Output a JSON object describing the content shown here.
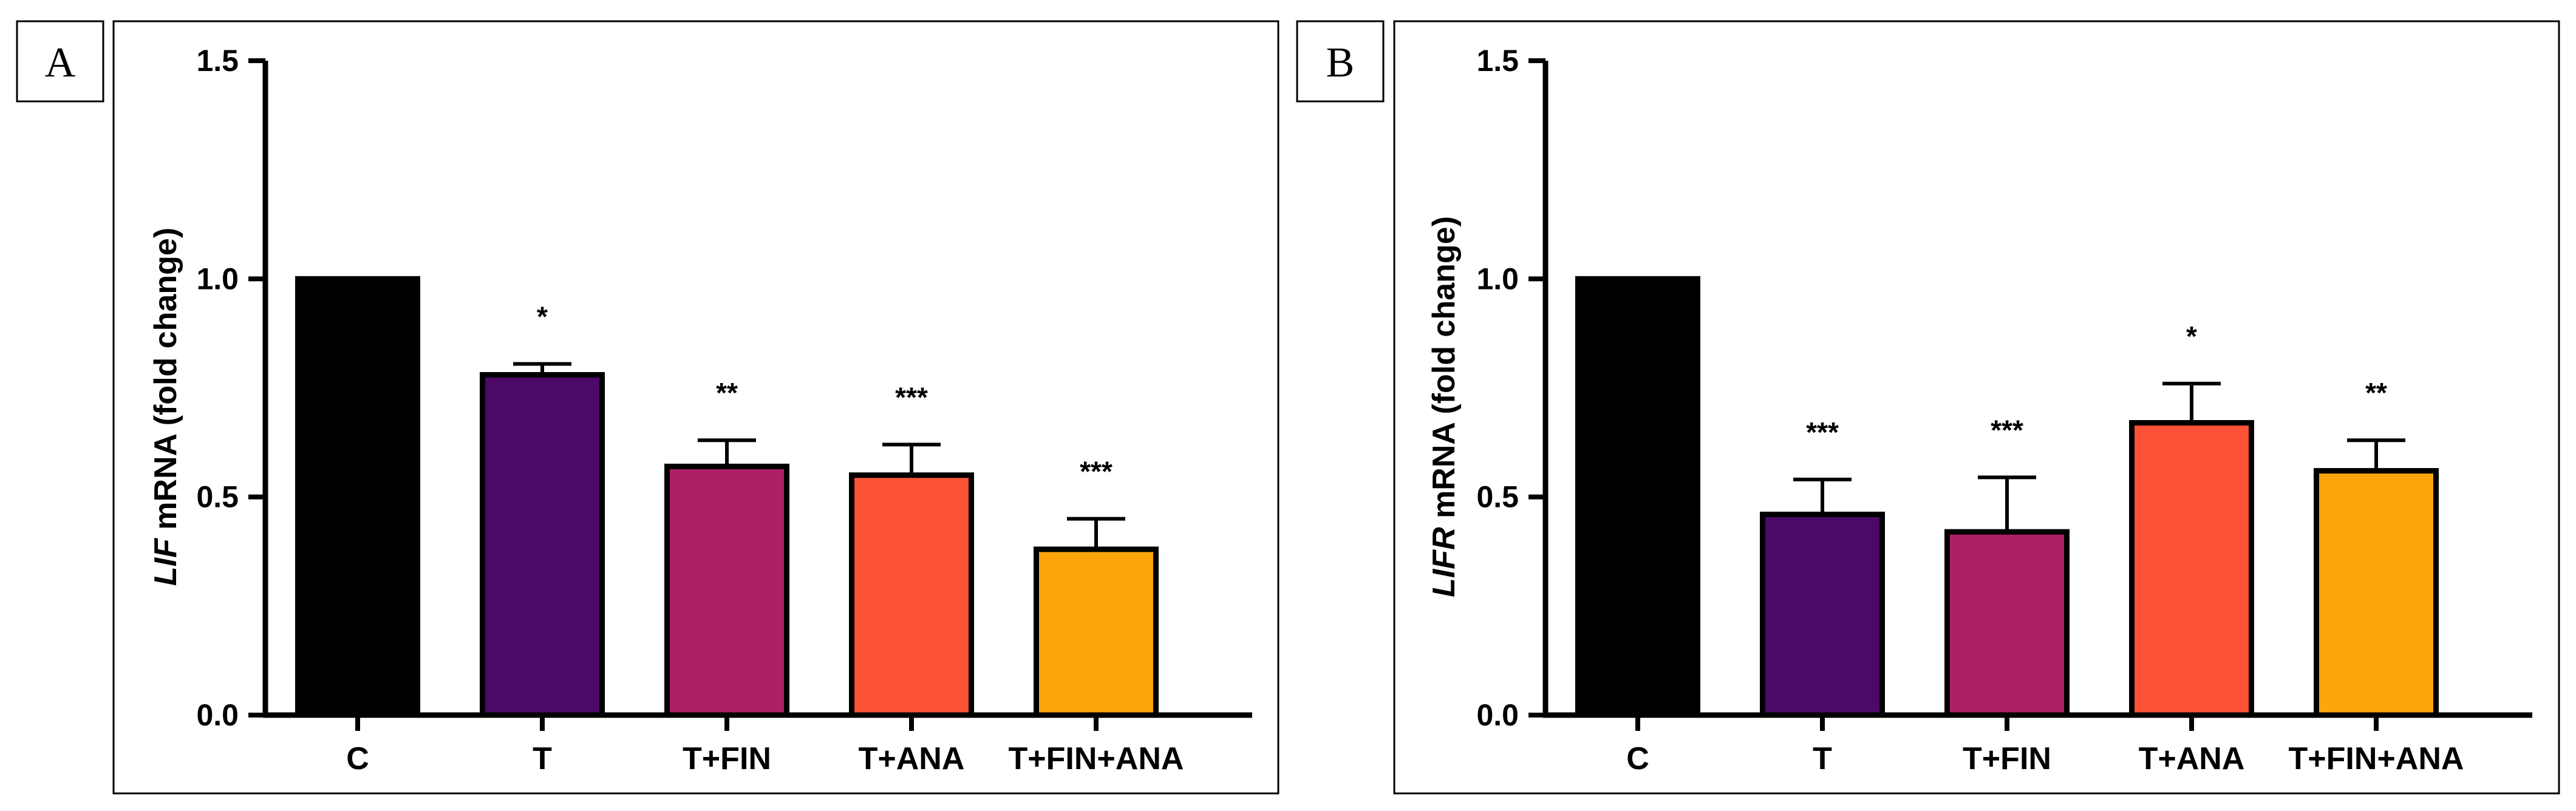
{
  "chart_data": [
    {
      "type": "bar",
      "panel_label": "A",
      "ylabel_gene": "LIF",
      "ylabel_rest": " mRNA (fold change)",
      "categories": [
        "C",
        "T",
        "T+FIN",
        "T+ANA",
        "T+FIN+ANA"
      ],
      "values": [
        1.0,
        0.78,
        0.57,
        0.55,
        0.38
      ],
      "errors": [
        0,
        0.025,
        0.06,
        0.07,
        0.07
      ],
      "significance": [
        "",
        "*",
        "**",
        "***",
        "***"
      ],
      "colors": [
        "#000000",
        "#4b0a68",
        "#ad2065",
        "#fd5237",
        "#fca50a"
      ],
      "ylim": [
        0,
        1.5
      ],
      "yticks": [
        "0.0",
        "0.5",
        "1.0",
        "1.5"
      ]
    },
    {
      "type": "bar",
      "panel_label": "B",
      "ylabel_gene": "LIFR",
      "ylabel_rest": " mRNA (fold change)",
      "categories": [
        "C",
        "T",
        "T+FIN",
        "T+ANA",
        "T+FIN+ANA"
      ],
      "values": [
        1.0,
        0.46,
        0.42,
        0.67,
        0.56
      ],
      "errors": [
        0,
        0.08,
        0.125,
        0.09,
        0.07
      ],
      "significance": [
        "",
        "***",
        "***",
        "*",
        "**"
      ],
      "colors": [
        "#000000",
        "#4b0a68",
        "#ad2065",
        "#fd5237",
        "#fca50a"
      ],
      "ylim": [
        0,
        1.5
      ],
      "yticks": [
        "0.0",
        "0.5",
        "1.0",
        "1.5"
      ]
    }
  ]
}
